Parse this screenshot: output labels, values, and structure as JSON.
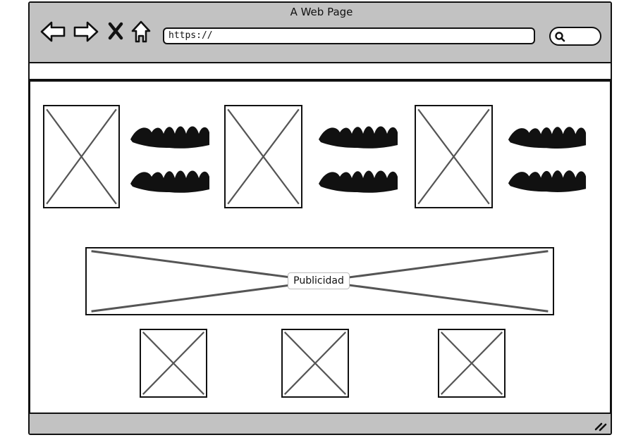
{
  "window": {
    "title": "A Web Page"
  },
  "toolbar": {
    "back_icon": "back-arrow-icon",
    "forward_icon": "forward-arrow-icon",
    "stop_icon": "close-icon",
    "home_icon": "home-icon",
    "url_value": "https://",
    "search_icon": "search-icon"
  },
  "content": {
    "product_row_count": 3,
    "ad": {
      "label": "Publicidad"
    },
    "bottom_thumbnails": 3
  },
  "colors": {
    "chrome": "#c2c2c2",
    "ink": "#111111",
    "placeholder_line": "#555555"
  }
}
